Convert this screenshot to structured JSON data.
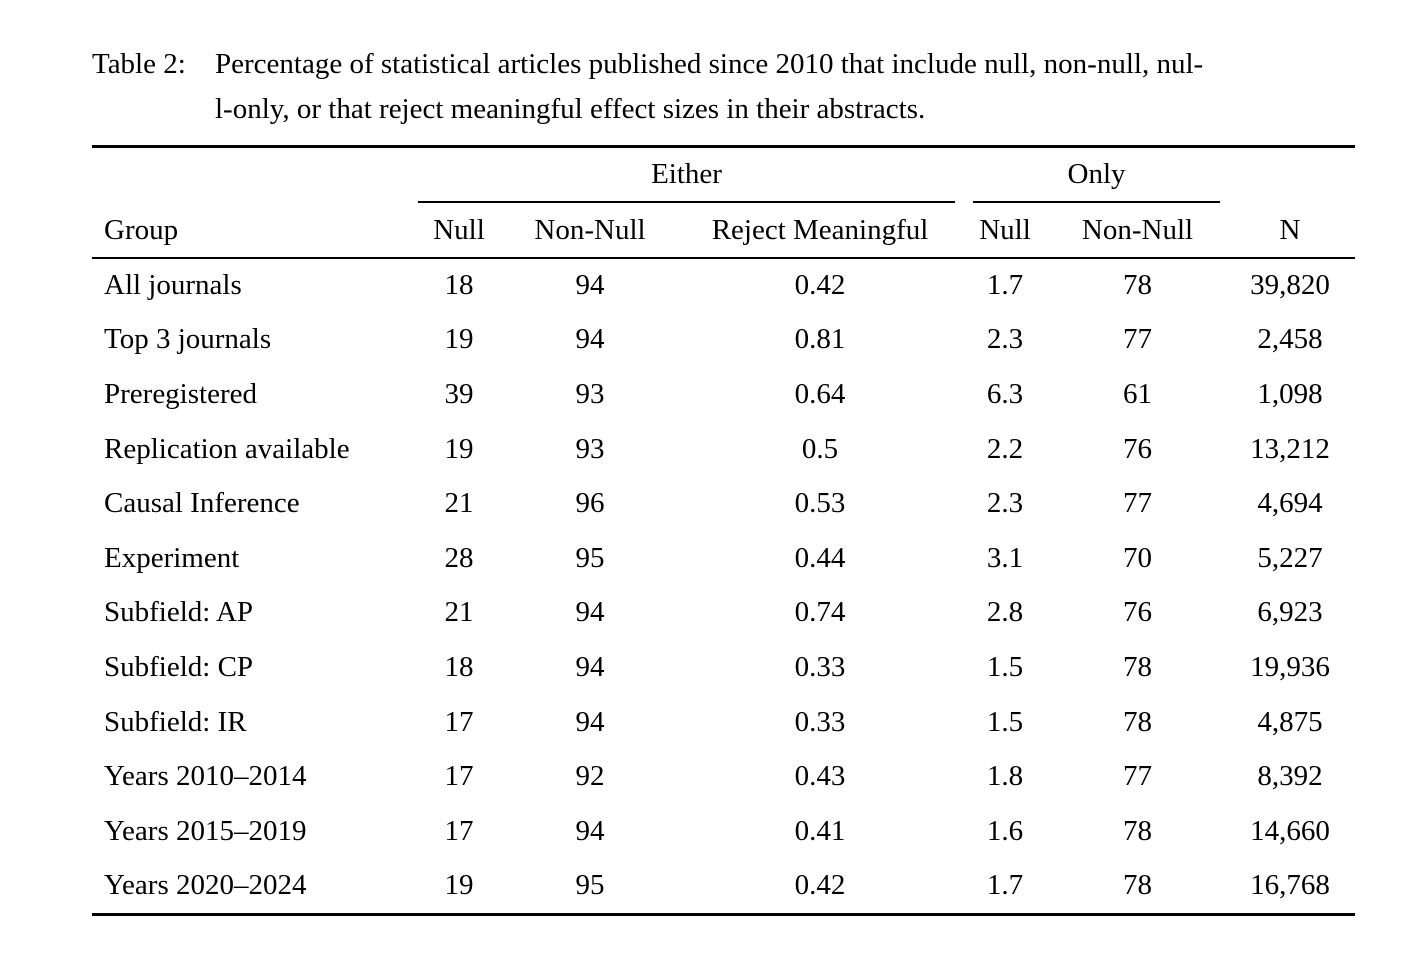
{
  "caption": {
    "label": "Table 2:",
    "line1": "Percentage of statistical articles published since 2010 that include null, non-null, nul-",
    "line2": "l-only, or that reject meaningful effect sizes in their abstracts."
  },
  "table": {
    "spanners": {
      "either": "Either",
      "only": "Only"
    },
    "columns": [
      "Group",
      "Null",
      "Non-Null",
      "Reject Meaningful",
      "Null",
      "Non-Null",
      "N"
    ],
    "rows": [
      {
        "cells": [
          "All journals",
          "18",
          "94",
          "0.42",
          "1.7",
          "78",
          "39,820"
        ]
      },
      {
        "cells": [
          "Top 3 journals",
          "19",
          "94",
          "0.81",
          "2.3",
          "77",
          "2,458"
        ]
      },
      {
        "cells": [
          "Preregistered",
          "39",
          "93",
          "0.64",
          "6.3",
          "61",
          "1,098"
        ]
      },
      {
        "cells": [
          "Replication available",
          "19",
          "93",
          "0.5",
          "2.2",
          "76",
          "13,212"
        ]
      },
      {
        "cells": [
          "Causal Inference",
          "21",
          "96",
          "0.53",
          "2.3",
          "77",
          "4,694"
        ]
      },
      {
        "cells": [
          "Experiment",
          "28",
          "95",
          "0.44",
          "3.1",
          "70",
          "5,227"
        ]
      },
      {
        "cells": [
          "Subfield: AP",
          "21",
          "94",
          "0.74",
          "2.8",
          "76",
          "6,923"
        ]
      },
      {
        "cells": [
          "Subfield: CP",
          "18",
          "94",
          "0.33",
          "1.5",
          "78",
          "19,936"
        ]
      },
      {
        "cells": [
          "Subfield: IR",
          "17",
          "94",
          "0.33",
          "1.5",
          "78",
          "4,875"
        ]
      },
      {
        "cells": [
          "Years 2010–2014",
          "17",
          "92",
          "0.43",
          "1.8",
          "77",
          "8,392"
        ]
      },
      {
        "cells": [
          "Years 2015–2019",
          "17",
          "94",
          "0.41",
          "1.6",
          "78",
          "14,660"
        ]
      },
      {
        "cells": [
          "Years 2020–2024",
          "19",
          "95",
          "0.42",
          "1.7",
          "78",
          "16,768"
        ]
      }
    ]
  },
  "colors": {
    "text": "#000000",
    "rule": "#000000",
    "background": "#ffffff"
  }
}
